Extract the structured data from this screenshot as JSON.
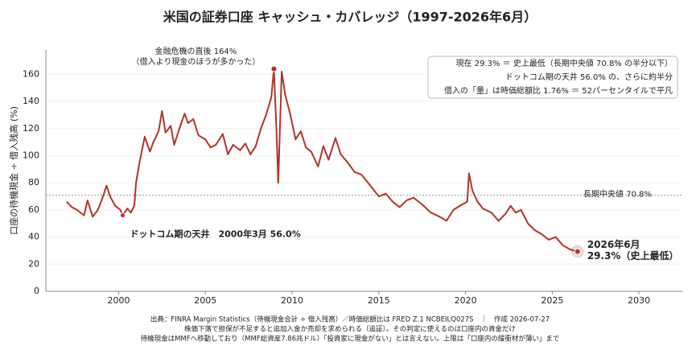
{
  "chart_data": {
    "type": "line",
    "title": "米国の証券口座 キャッシュ・カバレッジ（1997-2026年6月）",
    "y_label": "口座の待機現金 ÷ 借入残高 (%)",
    "x": [
      1997.0,
      1997.3,
      1997.6,
      1998.0,
      1998.2,
      1998.5,
      1998.8,
      1999.1,
      1999.3,
      1999.5,
      1999.8,
      2000.1,
      2000.23,
      2000.5,
      2000.7,
      2000.9,
      2001.0,
      2001.2,
      2001.5,
      2001.8,
      2002.0,
      2002.3,
      2002.5,
      2002.7,
      2003.0,
      2003.2,
      2003.5,
      2003.8,
      2004.0,
      2004.3,
      2004.6,
      2005.0,
      2005.3,
      2005.6,
      2006.0,
      2006.3,
      2006.6,
      2007.0,
      2007.3,
      2007.6,
      2007.9,
      2008.2,
      2008.5,
      2008.8,
      2008.95,
      2009.1,
      2009.2,
      2009.4,
      2009.6,
      2009.9,
      2010.2,
      2010.5,
      2010.8,
      2011.1,
      2011.5,
      2011.8,
      2012.1,
      2012.5,
      2012.8,
      2013.2,
      2013.6,
      2014.0,
      2014.5,
      2015.0,
      2015.4,
      2015.8,
      2016.2,
      2016.6,
      2017.0,
      2017.5,
      2018.0,
      2018.5,
      2018.9,
      2019.3,
      2019.8,
      2020.1,
      2020.2,
      2020.4,
      2020.7,
      2021.0,
      2021.5,
      2021.9,
      2022.3,
      2022.6,
      2022.9,
      2023.2,
      2023.6,
      2024.0,
      2024.4,
      2024.8,
      2025.2,
      2025.6,
      2026.0,
      2026.46
    ],
    "series": [
      {
        "color": "#b0342c",
        "values": [
          66,
          62,
          60,
          56,
          67,
          55,
          60,
          70,
          78,
          70,
          63,
          60,
          56,
          61,
          58,
          63,
          80,
          95,
          114,
          103,
          110,
          118,
          133,
          117,
          122,
          108,
          120,
          131,
          124,
          127,
          115,
          112,
          106,
          108,
          116,
          101,
          108,
          104,
          109,
          101,
          107,
          120,
          130,
          143,
          164,
          118,
          80,
          162,
          145,
          130,
          112,
          118,
          106,
          103,
          92,
          107,
          97,
          113,
          101,
          95,
          88,
          86,
          78,
          70,
          72,
          66,
          62,
          67,
          69,
          64,
          58,
          55,
          52,
          60,
          64,
          66,
          87,
          74,
          66,
          61,
          58,
          52,
          57,
          63,
          58,
          60,
          50,
          45,
          42,
          38,
          40,
          34,
          31,
          29.3
        ]
      }
    ],
    "xlim": [
      1995.8,
      2032.5
    ],
    "ylim": [
      0,
      178
    ],
    "xticks": [
      2000,
      2005,
      2010,
      2015,
      2020,
      2025,
      2030
    ],
    "yticks": [
      0,
      20,
      40,
      60,
      80,
      100,
      120,
      140,
      160
    ],
    "grid": true,
    "reference_line": {
      "value": 70.8,
      "label": "長期中央値 70.8%"
    },
    "annotations": {
      "peak": [
        "金融危機の直後 164%",
        "（借入より現金のほうが多かった）"
      ],
      "dotcom": [
        "ドットコム期の天井　2000年3月 56.0%"
      ],
      "current": [
        "2026年6月",
        "29.3%（史上最低）"
      ]
    },
    "info_box": [
      "現在 29.3% ＝ 史上最低（長期中央値 70.8% の半分以下）",
      "ドットコム期の天井 56.0% の、さらに約半分",
      "借入の「量」は時価総額比 1.76% ＝ 52パーセンタイルで平凡"
    ],
    "footnotes": [
      "出典：FINRA Margin Statistics（待機現金合計 ÷ 借入残高）／時価総額比は FRED Z.1 NCBEILQ027S　｜　作成 2026-07-27",
      "株価下落で担保が不足すると追加入金か売却を求められる（追証）。その判定に使えるのは口座内の資金だけ",
      "待機現金はMMFへ移動しており（MMF総資産7.86兆ドル）「投資家に現金がない」とは言えない。上限は「口座内の緩衝材が薄い」まで"
    ]
  }
}
